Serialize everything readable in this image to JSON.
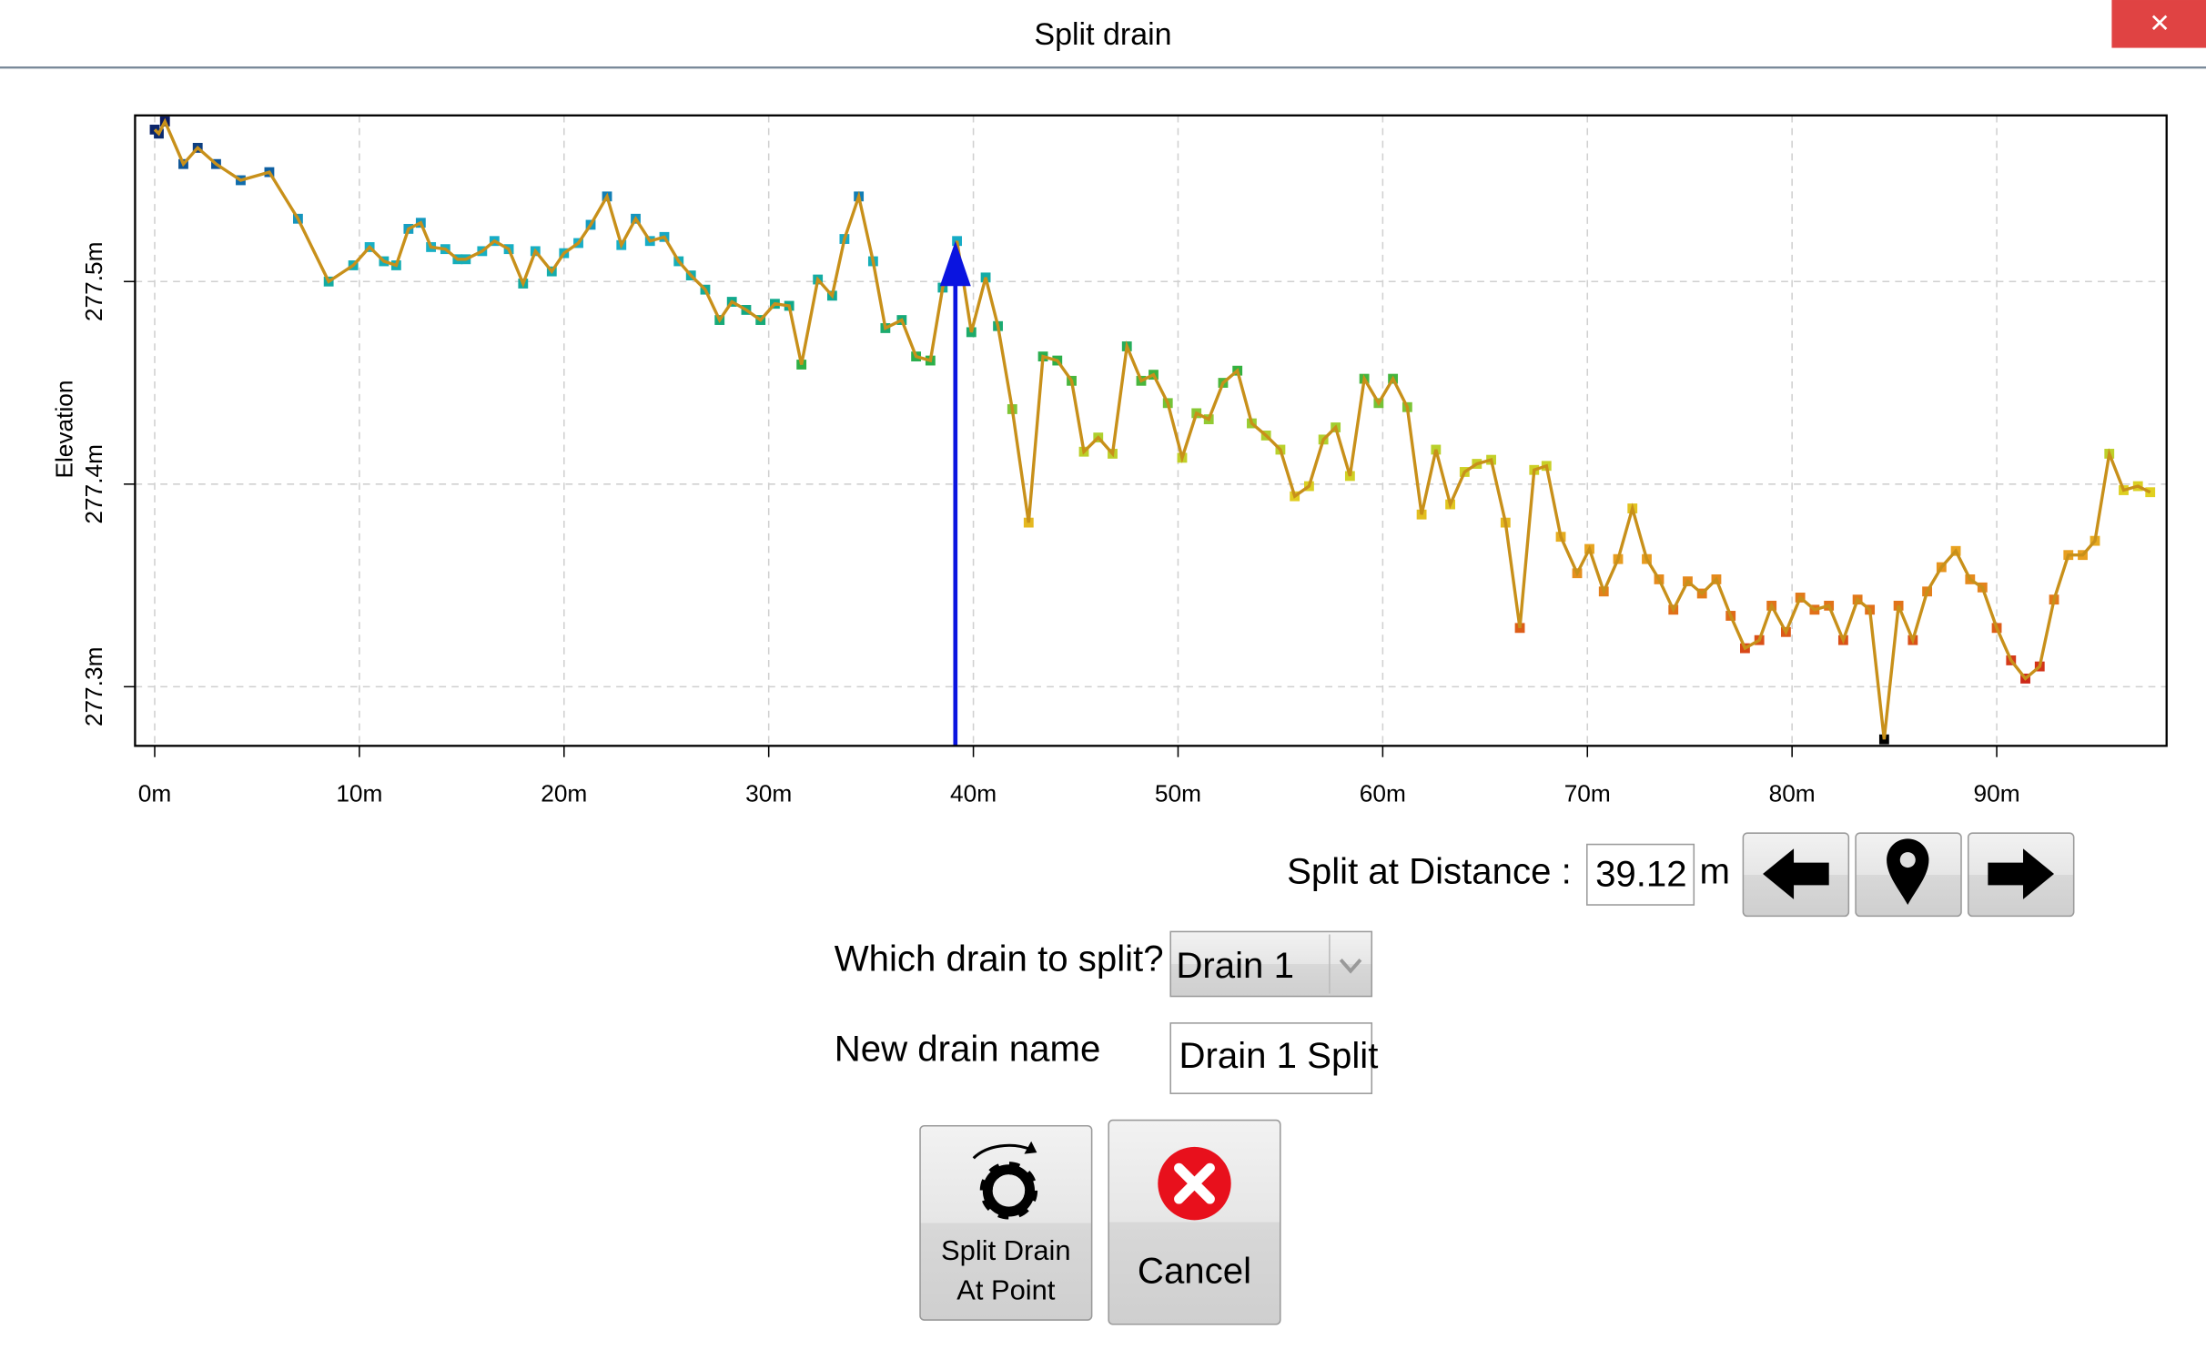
{
  "window": {
    "title": "Split drain",
    "close": "✕"
  },
  "chart_data": {
    "type": "line",
    "ylabel": "Elevation",
    "color": "#c8901a",
    "split_color": "#0a14e0",
    "grid": true,
    "marker_colors": [
      "#000000",
      "#d02818",
      "#e06a18",
      "#e8a020",
      "#e0d020",
      "#a8d030",
      "#30b040",
      "#10a888",
      "#18b0c8",
      "#1070b0",
      "#0a1a60"
    ],
    "xlim": [
      -0.96,
      98.3
    ],
    "ylim": [
      277.2708,
      277.582
    ],
    "xticks": [
      {
        "value": 0,
        "label": "0m"
      },
      {
        "value": 10,
        "label": "10m"
      },
      {
        "value": 20,
        "label": "20m"
      },
      {
        "value": 30,
        "label": "30m"
      },
      {
        "value": 40,
        "label": "40m"
      },
      {
        "value": 50,
        "label": "50m"
      },
      {
        "value": 60,
        "label": "60m"
      },
      {
        "value": 70,
        "label": "70m"
      },
      {
        "value": 80,
        "label": "80m"
      },
      {
        "value": 90,
        "label": "90m"
      }
    ],
    "yticks": [
      {
        "value": 277.3,
        "label": "277.3m"
      },
      {
        "value": 277.4,
        "label": "277.4m"
      },
      {
        "value": 277.5,
        "label": "277.5m"
      }
    ],
    "x": [
      0.0,
      0.2,
      0.5,
      1.4,
      2.1,
      3.0,
      4.2,
      5.6,
      7.0,
      8.5,
      9.7,
      10.5,
      11.2,
      11.8,
      12.4,
      13.0,
      13.5,
      14.2,
      14.8,
      15.2,
      16.0,
      16.6,
      17.3,
      18.0,
      18.6,
      19.4,
      20.0,
      20.7,
      21.3,
      22.1,
      22.8,
      23.5,
      24.2,
      24.9,
      25.6,
      26.2,
      26.9,
      27.6,
      28.2,
      28.9,
      29.6,
      30.3,
      31.0,
      31.6,
      32.4,
      33.1,
      33.7,
      34.4,
      35.1,
      35.7,
      36.5,
      37.2,
      37.9,
      38.5,
      39.2,
      39.9,
      40.6,
      41.2,
      41.9,
      42.7,
      43.4,
      44.1,
      44.8,
      45.4,
      46.1,
      46.8,
      47.5,
      48.2,
      48.8,
      49.5,
      50.2,
      50.9,
      51.5,
      52.2,
      52.9,
      53.6,
      54.3,
      55.0,
      55.7,
      56.4,
      57.1,
      57.7,
      58.4,
      59.1,
      59.8,
      60.5,
      61.2,
      61.9,
      62.6,
      63.3,
      64.0,
      64.6,
      65.3,
      66.0,
      66.7,
      67.4,
      68.0,
      68.7,
      69.5,
      70.1,
      70.8,
      71.5,
      72.2,
      72.9,
      73.5,
      74.2,
      74.9,
      75.6,
      76.3,
      77.0,
      77.7,
      78.4,
      79.0,
      79.7,
      80.4,
      81.1,
      81.8,
      82.5,
      83.2,
      83.8,
      84.5,
      85.2,
      85.9,
      86.6,
      87.3,
      88.0,
      88.7,
      89.3,
      90.0,
      90.7,
      91.4,
      92.1,
      92.8,
      93.5,
      94.2,
      94.8,
      95.5,
      96.2,
      96.9,
      97.5
    ],
    "values": [
      277.575,
      277.573,
      277.579,
      277.558,
      277.566,
      277.558,
      277.55,
      277.554,
      277.531,
      277.5,
      277.508,
      277.517,
      277.51,
      277.508,
      277.526,
      277.529,
      277.517,
      277.516,
      277.511,
      277.511,
      277.515,
      277.52,
      277.516,
      277.499,
      277.515,
      277.505,
      277.514,
      277.519,
      277.528,
      277.542,
      277.518,
      277.531,
      277.52,
      277.522,
      277.51,
      277.503,
      277.496,
      277.481,
      277.49,
      277.486,
      277.481,
      277.489,
      277.488,
      277.459,
      277.501,
      277.493,
      277.521,
      277.542,
      277.51,
      277.477,
      277.481,
      277.463,
      277.461,
      277.497,
      277.52,
      277.475,
      277.502,
      277.478,
      277.437,
      277.381,
      277.463,
      277.461,
      277.451,
      277.416,
      277.423,
      277.415,
      277.468,
      277.451,
      277.454,
      277.44,
      277.413,
      277.435,
      277.432,
      277.45,
      277.456,
      277.43,
      277.424,
      277.417,
      277.394,
      277.399,
      277.422,
      277.428,
      277.404,
      277.452,
      277.44,
      277.452,
      277.438,
      277.385,
      277.417,
      277.39,
      277.406,
      277.41,
      277.412,
      277.381,
      277.329,
      277.407,
      277.409,
      277.374,
      277.356,
      277.368,
      277.347,
      277.363,
      277.388,
      277.363,
      277.353,
      277.338,
      277.352,
      277.346,
      277.353,
      277.335,
      277.319,
      277.323,
      277.34,
      277.327,
      277.344,
      277.338,
      277.34,
      277.323,
      277.343,
      277.338,
      277.274,
      277.34,
      277.323,
      277.347,
      277.359,
      277.367,
      277.353,
      277.349,
      277.329,
      277.313,
      277.304,
      277.31,
      277.343,
      277.365,
      277.365,
      277.372,
      277.415,
      277.397,
      277.399,
      277.396
    ]
  },
  "form": {
    "split_label": "Split at Distance :",
    "split_distance": 39.12,
    "split_unit": "m",
    "drain_label": "Which drain to split?",
    "drain_selected": "Drain 1",
    "name_label": "New drain name",
    "new_name": "Drain 1 Split",
    "split_button": [
      "Split Drain",
      "At Point"
    ],
    "cancel_button": "Cancel"
  }
}
